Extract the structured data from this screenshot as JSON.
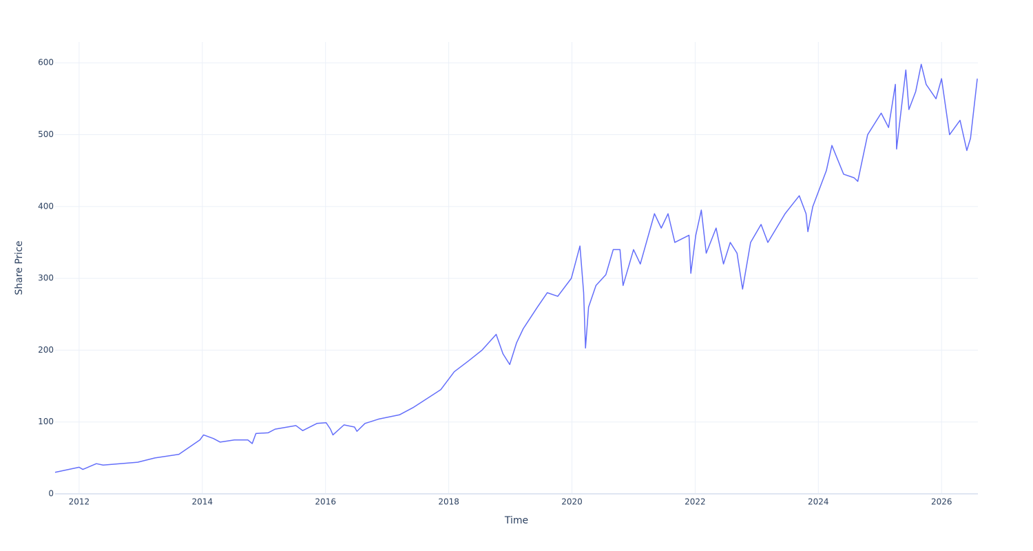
{
  "chart_data": {
    "type": "line",
    "x_label": "Time",
    "y_label": "Share Price",
    "x": [
      2011.61,
      2012.0,
      2012.06,
      2012.28,
      2012.39,
      2012.95,
      2013.23,
      2013.62,
      2013.96,
      2014.02,
      2014.18,
      2014.29,
      2014.52,
      2014.74,
      2014.81,
      2014.87,
      2015.07,
      2015.18,
      2015.52,
      2015.63,
      2015.86,
      2016.01,
      2016.08,
      2016.12,
      2016.3,
      2016.47,
      2016.51,
      2016.64,
      2016.86,
      2017.2,
      2017.42,
      2017.87,
      2018.09,
      2018.32,
      2018.54,
      2018.77,
      2018.88,
      2018.99,
      2019.1,
      2019.21,
      2019.44,
      2019.6,
      2019.77,
      2019.99,
      2020.13,
      2020.19,
      2020.22,
      2020.27,
      2020.39,
      2020.55,
      2020.67,
      2020.78,
      2020.83,
      2021.0,
      2021.11,
      2021.34,
      2021.45,
      2021.56,
      2021.67,
      2021.9,
      2021.93,
      2022.01,
      2022.1,
      2022.18,
      2022.34,
      2022.46,
      2022.57,
      2022.68,
      2022.77,
      2022.9,
      2023.07,
      2023.18,
      2023.46,
      2023.69,
      2023.8,
      2023.83,
      2023.91,
      2024.13,
      2024.22,
      2024.41,
      2024.58,
      2024.64,
      2024.8,
      2025.02,
      2025.14,
      2025.25,
      2025.27,
      2025.42,
      2025.47,
      2025.58,
      2025.67,
      2025.75,
      2025.91,
      2026.0,
      2026.13,
      2026.3,
      2026.41,
      2026.47,
      2026.58
    ],
    "series": [
      {
        "name": "Share Price",
        "color": "#636efa",
        "values": [
          30,
          37,
          34,
          42,
          40,
          44,
          50,
          55,
          75,
          82,
          77,
          72,
          75,
          75,
          70,
          84,
          85,
          90,
          95,
          88,
          98,
          99,
          90,
          82,
          96,
          93,
          87,
          98,
          104,
          110,
          120,
          145,
          170,
          185,
          200,
          222,
          195,
          180,
          210,
          230,
          260,
          280,
          275,
          300,
          345,
          280,
          203,
          260,
          290,
          305,
          340,
          340,
          290,
          340,
          320,
          390,
          370,
          390,
          350,
          360,
          307,
          360,
          395,
          335,
          370,
          320,
          350,
          335,
          285,
          350,
          375,
          350,
          390,
          415,
          390,
          365,
          400,
          450,
          485,
          445,
          440,
          435,
          500,
          530,
          510,
          570,
          480,
          590,
          535,
          560,
          598,
          570,
          550,
          578,
          500,
          520,
          478,
          495,
          578
        ]
      }
    ],
    "xlim": [
      2011.61,
      2026.59
    ],
    "xticks": [
      2012,
      2014,
      2016,
      2018,
      2020,
      2022,
      2024,
      2026
    ],
    "ylim": [
      0,
      629
    ],
    "yticks": [
      0,
      100,
      200,
      300,
      400,
      500,
      600
    ],
    "grid": true
  }
}
